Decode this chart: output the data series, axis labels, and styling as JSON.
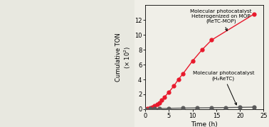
{
  "red_time": [
    0,
    0.5,
    1,
    1.5,
    2,
    2.5,
    3,
    3.5,
    4,
    5,
    6,
    7,
    8,
    10,
    12,
    14,
    23
  ],
  "red_ton": [
    0,
    0.05,
    0.15,
    0.25,
    0.45,
    0.65,
    0.9,
    1.2,
    1.6,
    2.3,
    3.1,
    4.0,
    4.8,
    6.5,
    8.0,
    9.3,
    12.8
  ],
  "gray_time": [
    0,
    1,
    2,
    3,
    5,
    8,
    11,
    14,
    17,
    20,
    23
  ],
  "gray_ton": [
    0,
    0.05,
    0.08,
    0.1,
    0.12,
    0.15,
    0.18,
    0.2,
    0.22,
    0.25,
    0.28
  ],
  "red_color": "#e8192c",
  "gray_color": "#595959",
  "xlabel": "Time (h)",
  "ylabel": "Cumulative TON (× 10²)",
  "xlim": [
    0,
    25
  ],
  "ylim": [
    0,
    14
  ],
  "yticks": [
    0,
    2,
    4,
    6,
    8,
    10,
    12
  ],
  "xticks": [
    0,
    5,
    10,
    15,
    20,
    25
  ],
  "annotation_red": "Molecular photocatalyst\nHeterogenized on MOP\n(ReTC-MOP)",
  "annotation_gray": "Molecular photocatalyst\n(H₂ReTC)",
  "background": "#f0efe8",
  "left_bg": "#e8e8e0"
}
